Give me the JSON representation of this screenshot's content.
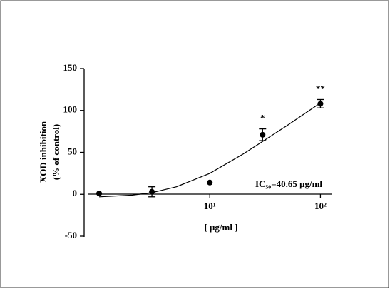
{
  "chart_data": {
    "type": "scatter",
    "x_label": "[ μg/ml ]",
    "y_label": [
      "XOD inhibition",
      "(% of control)"
    ],
    "annotation": "IC₅₀=40.65 μg/ml",
    "log_x": true,
    "xlim": [
      0.8,
      126
    ],
    "xticks": [
      {
        "value": 10,
        "label": "10¹"
      },
      {
        "value": 100,
        "label": "10²"
      }
    ],
    "ylim": [
      -50,
      150
    ],
    "yticks": [
      -50,
      0,
      50,
      100,
      150
    ],
    "series": [
      {
        "name": "XOD inhibition",
        "color": "#000000",
        "x": [
          1,
          3,
          10,
          30,
          100
        ],
        "values": [
          1,
          3,
          14,
          71,
          108
        ],
        "errors": [
          0,
          6,
          0,
          7,
          5
        ],
        "point_labels": [
          null,
          null,
          null,
          "*",
          "**"
        ]
      },
      {
        "name": "Fit",
        "type": "line",
        "color": "#000000",
        "x": [
          1,
          2,
          3,
          5,
          10,
          20,
          30,
          50,
          100
        ],
        "values": [
          -3,
          -1,
          2,
          9,
          25,
          48,
          63,
          82,
          109
        ]
      }
    ]
  }
}
